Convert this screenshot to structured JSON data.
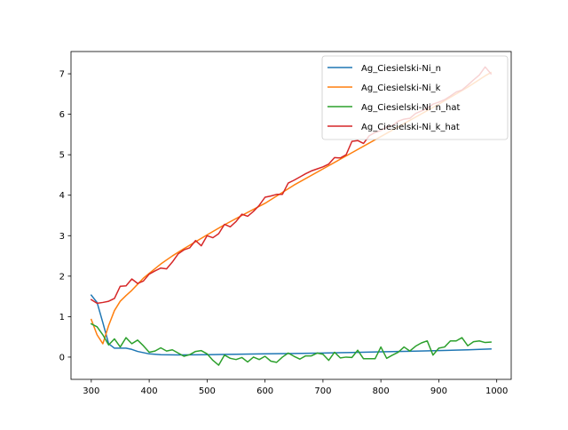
{
  "chart_data": {
    "type": "line",
    "title": "",
    "xlabel": "",
    "ylabel": "",
    "xlim": [
      265,
      1025
    ],
    "ylim": [
      -0.55,
      7.55
    ],
    "x_ticks": [
      300,
      400,
      500,
      600,
      700,
      800,
      900,
      1000
    ],
    "y_ticks": [
      0,
      1,
      2,
      3,
      4,
      5,
      6,
      7
    ],
    "grid": false,
    "legend_position": "top-right",
    "series": [
      {
        "name": "Ag_Ciesielski-Ni_n",
        "color": "#1f77b4",
        "x": [
          300,
          310,
          320,
          330,
          340,
          350,
          360,
          370,
          380,
          390,
          400,
          420,
          450,
          500,
          550,
          600,
          650,
          700,
          750,
          800,
          850,
          900,
          950,
          990
        ],
        "values": [
          1.53,
          1.35,
          0.85,
          0.33,
          0.22,
          0.22,
          0.22,
          0.19,
          0.14,
          0.11,
          0.08,
          0.06,
          0.055,
          0.06,
          0.07,
          0.08,
          0.09,
          0.1,
          0.115,
          0.13,
          0.145,
          0.16,
          0.18,
          0.2
        ]
      },
      {
        "name": "Ag_Ciesielski-Ni_k",
        "color": "#ff7f0e",
        "x": [
          300,
          310,
          320,
          330,
          340,
          350,
          360,
          370,
          380,
          390,
          400,
          420,
          440,
          460,
          480,
          500,
          530,
          560,
          600,
          650,
          700,
          750,
          800,
          850,
          900,
          950,
          980,
          990
        ],
        "values": [
          0.93,
          0.55,
          0.33,
          0.78,
          1.15,
          1.38,
          1.52,
          1.65,
          1.8,
          1.95,
          2.07,
          2.3,
          2.5,
          2.68,
          2.85,
          3.02,
          3.27,
          3.5,
          3.8,
          4.25,
          4.65,
          5.05,
          5.45,
          5.85,
          6.25,
          6.67,
          6.95,
          7.03
        ]
      },
      {
        "name": "Ag_Ciesielski-Ni_n_hat",
        "color": "#2ca02c",
        "x": [
          300,
          310,
          320,
          330,
          340,
          350,
          360,
          370,
          380,
          390,
          400,
          410,
          420,
          430,
          440,
          450,
          460,
          470,
          480,
          490,
          500,
          510,
          520,
          530,
          540,
          550,
          560,
          570,
          580,
          590,
          600,
          610,
          620,
          630,
          640,
          650,
          660,
          670,
          680,
          690,
          700,
          710,
          720,
          730,
          740,
          750,
          760,
          770,
          780,
          790,
          800,
          810,
          820,
          830,
          840,
          850,
          860,
          870,
          880,
          890,
          900,
          910,
          920,
          930,
          940,
          950,
          960,
          970,
          980,
          990
        ],
        "values": [
          0.82,
          0.75,
          0.55,
          0.3,
          0.45,
          0.25,
          0.48,
          0.33,
          0.42,
          0.28,
          0.12,
          0.15,
          0.23,
          0.15,
          0.18,
          0.1,
          0.02,
          0.06,
          0.14,
          0.16,
          0.08,
          -0.08,
          -0.2,
          0.05,
          -0.03,
          -0.06,
          -0.01,
          -0.12,
          0.0,
          -0.06,
          0.02,
          -0.1,
          -0.13,
          0.0,
          0.1,
          0.02,
          -0.05,
          0.03,
          0.03,
          0.1,
          0.07,
          -0.08,
          0.12,
          -0.02,
          0.0,
          -0.01,
          0.17,
          -0.04,
          -0.04,
          -0.04,
          0.25,
          -0.03,
          0.05,
          0.12,
          0.25,
          0.15,
          0.27,
          0.35,
          0.4,
          0.05,
          0.22,
          0.25,
          0.4,
          0.4,
          0.48,
          0.28,
          0.38,
          0.4,
          0.36,
          0.37
        ]
      },
      {
        "name": "Ag_Ciesielski-Ni_k_hat",
        "color": "#d62728",
        "x": [
          300,
          310,
          320,
          330,
          340,
          350,
          360,
          370,
          380,
          390,
          400,
          410,
          420,
          430,
          440,
          450,
          460,
          470,
          480,
          490,
          500,
          510,
          520,
          530,
          540,
          550,
          560,
          570,
          580,
          590,
          600,
          610,
          620,
          630,
          640,
          650,
          660,
          670,
          680,
          690,
          700,
          710,
          720,
          730,
          740,
          750,
          760,
          770,
          780,
          790,
          800,
          810,
          820,
          830,
          840,
          850,
          860,
          870,
          880,
          890,
          900,
          910,
          920,
          930,
          940,
          950,
          960,
          970,
          980,
          990
        ],
        "values": [
          1.42,
          1.33,
          1.35,
          1.38,
          1.45,
          1.75,
          1.76,
          1.93,
          1.82,
          1.88,
          2.05,
          2.13,
          2.2,
          2.18,
          2.35,
          2.55,
          2.65,
          2.7,
          2.88,
          2.75,
          3.0,
          2.95,
          3.05,
          3.28,
          3.22,
          3.35,
          3.53,
          3.48,
          3.6,
          3.75,
          3.95,
          3.98,
          4.02,
          4.02,
          4.3,
          4.37,
          4.45,
          4.53,
          4.6,
          4.65,
          4.7,
          4.77,
          4.93,
          4.92,
          5.0,
          5.33,
          5.35,
          5.28,
          5.47,
          5.55,
          5.6,
          5.68,
          5.72,
          5.83,
          5.88,
          5.9,
          6.02,
          6.08,
          6.15,
          6.25,
          6.3,
          6.36,
          6.45,
          6.55,
          6.6,
          6.72,
          6.85,
          6.97,
          7.17,
          7.0
        ]
      }
    ]
  }
}
